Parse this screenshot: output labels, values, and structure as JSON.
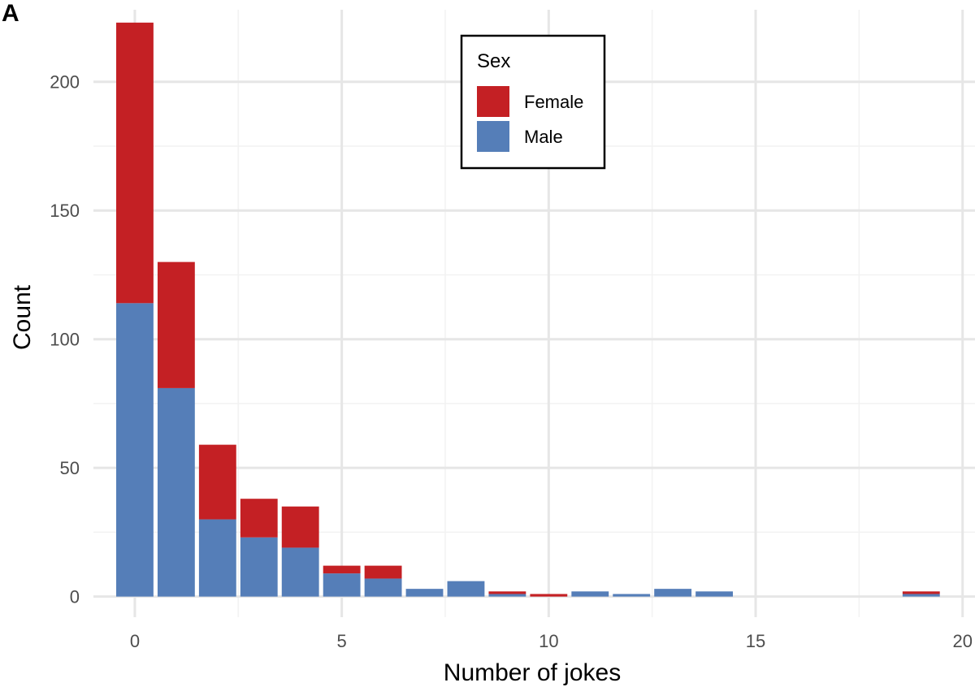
{
  "panel_label": "A",
  "chart_data": {
    "type": "bar",
    "stacked": true,
    "xlabel": "Number of jokes",
    "ylabel": "Count",
    "xlim": [
      -1.0,
      20.3
    ],
    "ylim": [
      -8,
      228
    ],
    "x_ticks": [
      0,
      5,
      10,
      15,
      20
    ],
    "y_ticks": [
      0,
      50,
      100,
      150,
      200
    ],
    "grid": true,
    "legend": {
      "title": "Sex",
      "position": "top-center"
    },
    "x": [
      0,
      1,
      2,
      3,
      4,
      5,
      6,
      7,
      8,
      9,
      10,
      11,
      12,
      13,
      14,
      19
    ],
    "series": [
      {
        "name": "Male",
        "color": "#557EB8",
        "values": [
          114,
          81,
          30,
          23,
          19,
          9,
          7,
          3,
          6,
          1,
          0,
          2,
          1,
          3,
          2,
          1
        ]
      },
      {
        "name": "Female",
        "color": "#C42024",
        "values": [
          109,
          49,
          29,
          15,
          16,
          3,
          5,
          0,
          0,
          1,
          1,
          0,
          0,
          0,
          0,
          1
        ]
      }
    ],
    "legend_order": [
      "Female",
      "Male"
    ]
  }
}
